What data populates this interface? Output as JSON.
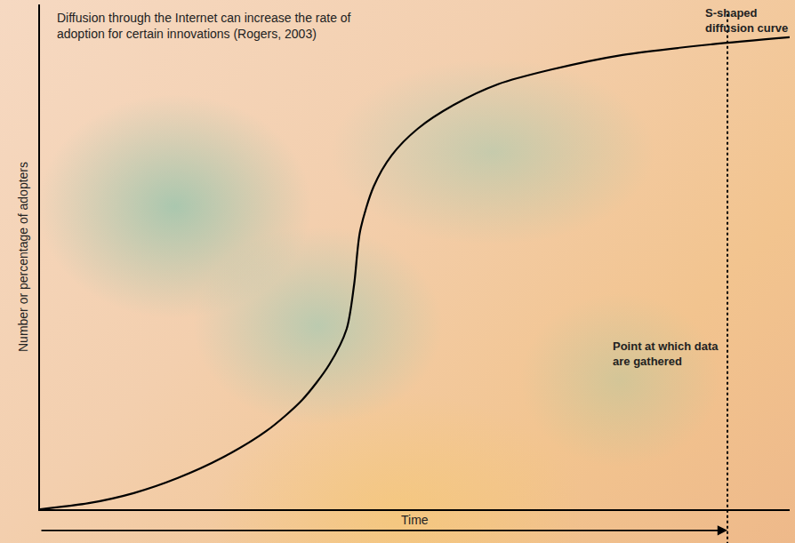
{
  "chart_data": {
    "type": "line",
    "x_label": "Time",
    "y_label": "Number or percentage of adopters",
    "annotations": [
      {
        "text": "Diffusion through the Internet can increase the rate of adoption for certain innovations (Rogers, 2003)"
      }
    ],
    "x": [
      0,
      6.5,
      12.5,
      18.4,
      24.3,
      30.2,
      35.0,
      38.6,
      40.9,
      41.9,
      42.7,
      44.5,
      46.9,
      50.4,
      55.2,
      61.1,
      68.2,
      77.7,
      89.6,
      100
    ],
    "series": [
      {
        "name": "S-shaped diffusion curve",
        "color": "#000000",
        "values": [
          0,
          1.2,
          3.2,
          6.2,
          10.2,
          15.5,
          21.7,
          28.7,
          35.7,
          44.5,
          55.1,
          63.9,
          70.1,
          75.4,
          80.1,
          84.2,
          87.1,
          90.0,
          92.1,
          93.5
        ]
      }
    ],
    "xlim": [
      0,
      100
    ],
    "ylim": [
      0,
      100
    ],
    "tick_labels": false,
    "grid": false,
    "line_style": "solid",
    "data_collection": {
      "x": 91.7,
      "label": "Point at which data are gathered",
      "line_style": "dotted"
    }
  }
}
